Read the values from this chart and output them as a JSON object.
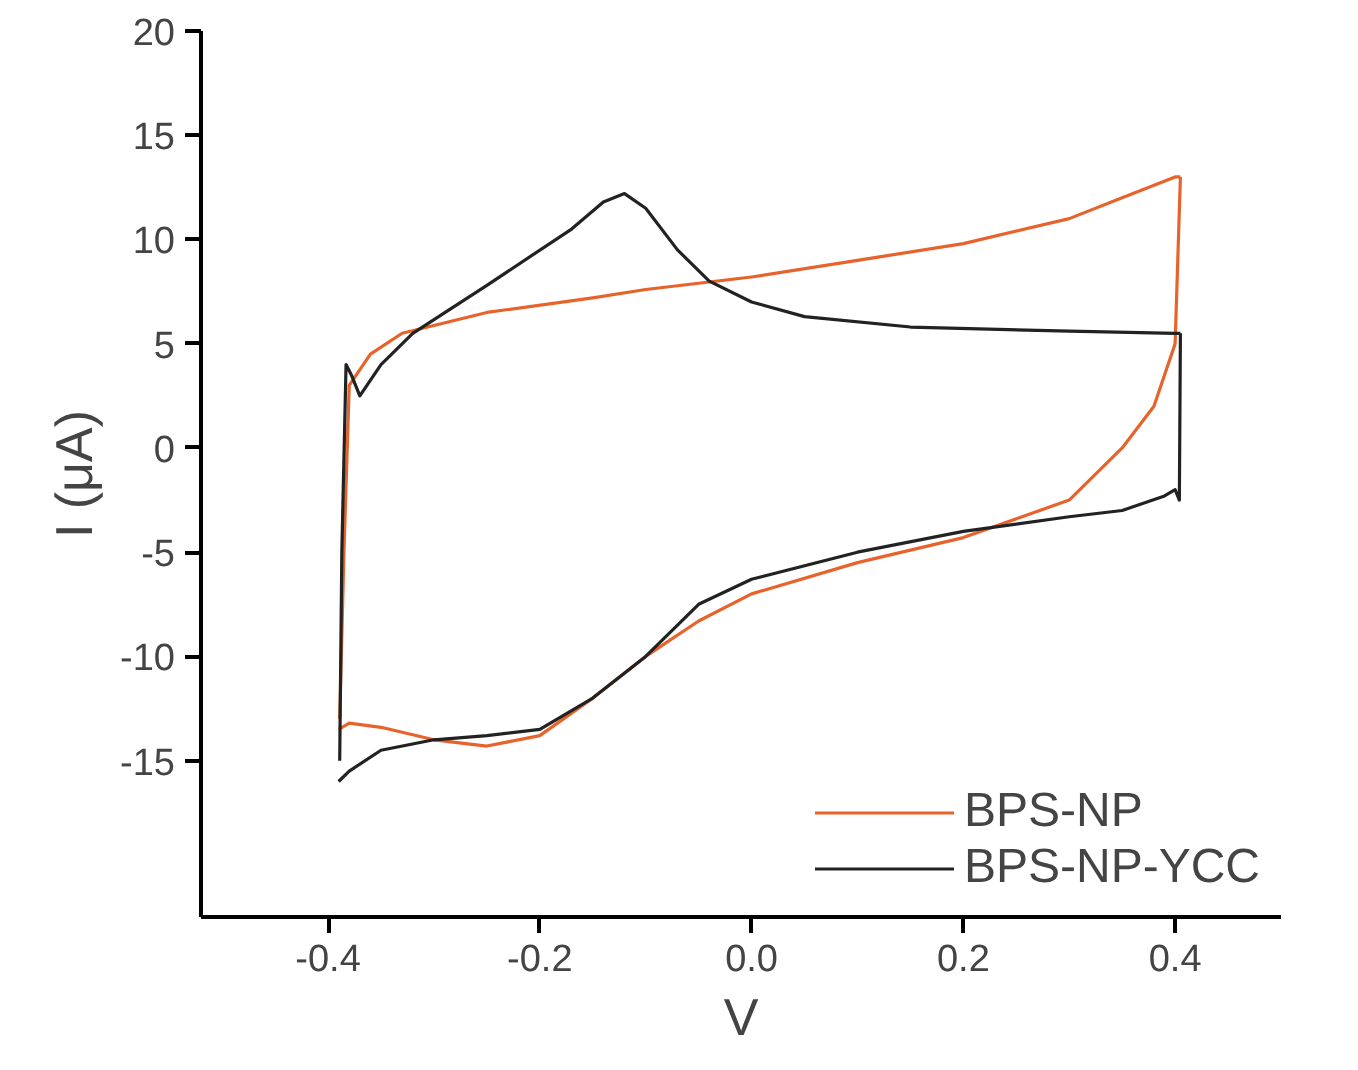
{
  "chart_data": {
    "type": "line",
    "xlabel": "V",
    "ylabel": "I (μA)",
    "xlim": [
      -0.52,
      0.5
    ],
    "ylim": [
      -22.5,
      20
    ],
    "xticks": [
      -0.4,
      -0.2,
      {
        "value": 0,
        "label": "0.0"
      },
      0.2,
      0.4
    ],
    "yticks": [
      -15,
      -10,
      -5,
      0,
      5,
      10,
      15,
      20
    ],
    "grid": false,
    "legend": "bottom right",
    "line_style": "solid",
    "marker": "none",
    "series": [
      {
        "name": "BPS-NP",
        "color": "#e8632b",
        "x": [
          -0.389,
          -0.385,
          -0.38,
          -0.36,
          -0.33,
          -0.25,
          -0.15,
          -0.1,
          0.0,
          0.1,
          0.2,
          0.3,
          0.35,
          0.4,
          0.405
        ],
        "values": [
          -13,
          -5,
          3,
          4.5,
          5.5,
          6.5,
          7.2,
          7.6,
          8.2,
          9.0,
          9.8,
          11,
          12,
          13,
          13
        ]
      },
      {
        "color": "#e8632b",
        "x": [
          0.405,
          0.4,
          0.38,
          0.35,
          0.3,
          0.2,
          0.1,
          0.0,
          -0.05,
          -0.1,
          -0.15,
          -0.2,
          -0.25,
          -0.3,
          -0.35,
          -0.38,
          -0.39
        ],
        "values": [
          13,
          5,
          2,
          0,
          -2.5,
          -4.3,
          -5.5,
          -7,
          -8.3,
          -10,
          -12,
          -13.8,
          -14.3,
          -14,
          -13.4,
          -13.2,
          -13.5
        ]
      },
      {
        "name": "BPS-NP-YCC",
        "color": "#222222",
        "x": [
          -0.389,
          -0.387,
          -0.383,
          -0.378,
          -0.37,
          -0.35,
          -0.32,
          -0.25,
          -0.17,
          -0.14,
          -0.12,
          -0.1,
          -0.07,
          -0.04,
          0.0,
          0.05,
          0.15,
          0.3,
          0.4,
          0.405
        ],
        "values": [
          -15,
          -5,
          4,
          3.5,
          2.5,
          4,
          5.5,
          7.8,
          10.5,
          11.8,
          12.2,
          11.5,
          9.5,
          8,
          7,
          6.3,
          5.8,
          5.6,
          5.5,
          5.5
        ]
      },
      {
        "color": "#222222",
        "x": [
          0.405,
          0.404,
          0.4,
          0.39,
          0.35,
          0.3,
          0.2,
          0.1,
          0.0,
          -0.05,
          -0.1,
          -0.15,
          -0.2,
          -0.25,
          -0.3,
          -0.35,
          -0.38,
          -0.39
        ],
        "values": [
          5.5,
          -2.5,
          -2,
          -2.3,
          -3,
          -3.3,
          -4,
          -5,
          -6.3,
          -7.5,
          -10,
          -12,
          -13.5,
          -13.8,
          -14,
          -14.5,
          -15.5,
          -16
        ]
      }
    ]
  }
}
